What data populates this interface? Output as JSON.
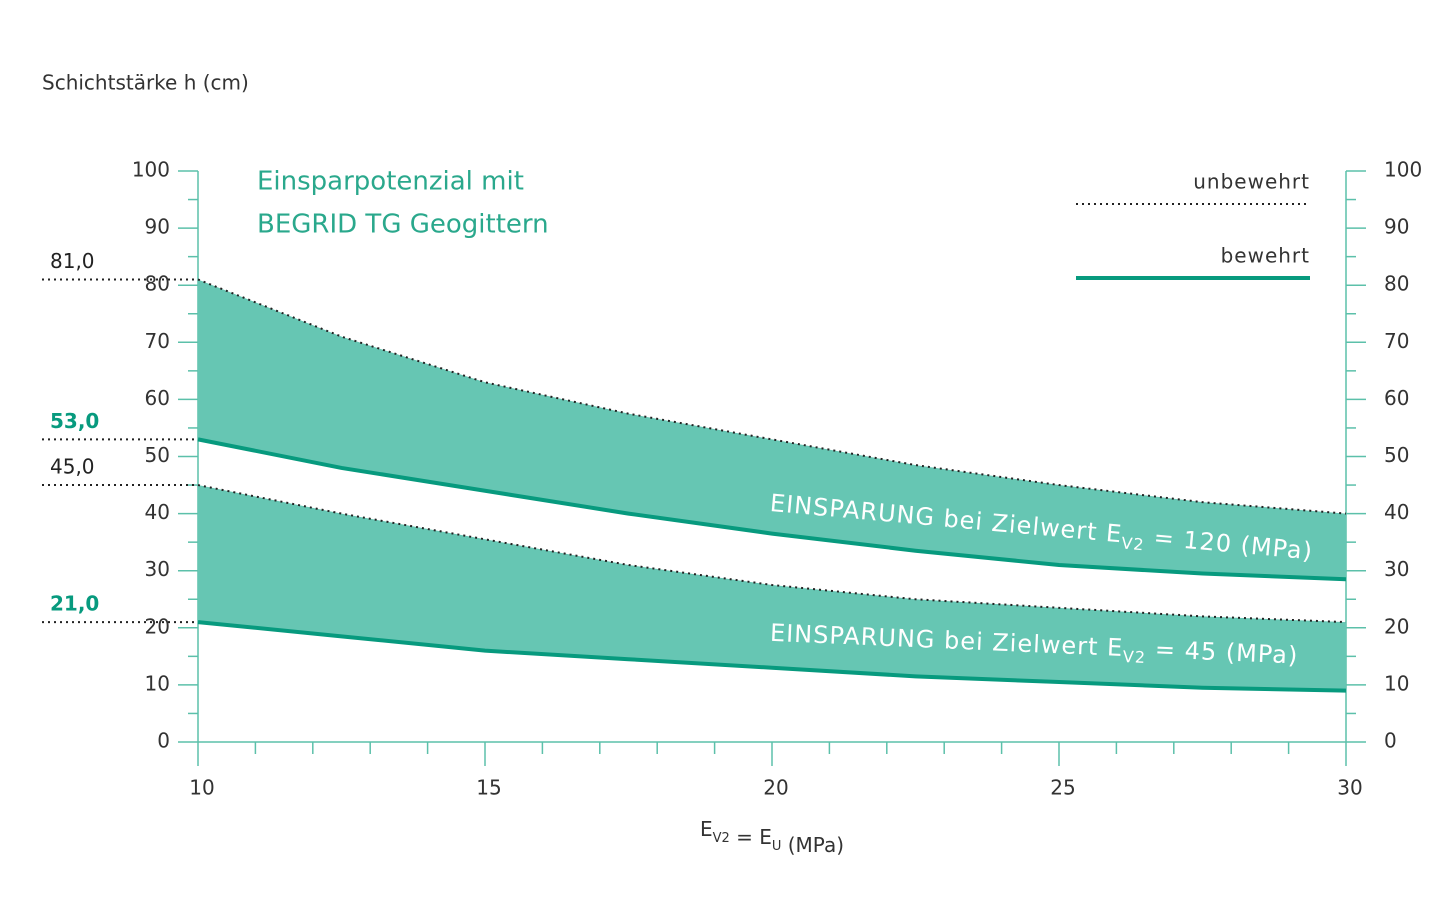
{
  "chart_data": {
    "type": "band",
    "ylabel": "Schichtstärke h (cm)",
    "title_lines": [
      "Einsparpotenzial mit",
      "BEGRID TG Geogittern"
    ],
    "xlabel": [
      {
        "text": "E",
        "sub": "V2"
      },
      {
        "text": " = E",
        "sub": "U"
      },
      {
        "text": " (MPa)"
      }
    ],
    "x": [
      10,
      12.5,
      15,
      17.5,
      20,
      22.5,
      25,
      27.5,
      30
    ],
    "xlim": [
      10,
      30
    ],
    "xticks": [
      10,
      15,
      20,
      25,
      30
    ],
    "xminorticks": [
      11,
      12,
      13,
      14,
      16,
      17,
      18,
      19,
      21,
      22,
      23,
      24,
      26,
      27,
      28,
      29
    ],
    "ylim": [
      0,
      100
    ],
    "yticks": [
      0,
      10,
      20,
      30,
      40,
      50,
      60,
      70,
      80,
      90,
      100
    ],
    "yminorticks": [
      5,
      15,
      25,
      35,
      45,
      55,
      65,
      75,
      85,
      95
    ],
    "series": [
      {
        "name": "unbewehrt",
        "style": "dotted",
        "color": "#222222"
      },
      {
        "name": "bewehrt",
        "style": "solid",
        "color": "#079a7e"
      }
    ],
    "band_color": "#66c6b3",
    "bands": [
      {
        "label": "EINSPARUNG bei Zielwert E",
        "sub": "V2",
        "suffix": " = 120 (MPa)",
        "series": [
          [
            81,
            71,
            63,
            57.5,
            53,
            48.5,
            45,
            42,
            40
          ],
          [
            53,
            48,
            44,
            40,
            36.5,
            33.5,
            31,
            29.5,
            28.5
          ]
        ]
      },
      {
        "label": "EINSPARUNG bei Zielwert E",
        "sub": "V2",
        "suffix": " = 45 (MPa)",
        "series": [
          [
            45,
            40,
            35.5,
            31,
            27.5,
            25,
            23.5,
            22,
            21
          ],
          [
            21,
            18.5,
            16,
            14.5,
            13,
            11.5,
            10.5,
            9.5,
            9
          ]
        ]
      }
    ],
    "annotations": [
      {
        "value": 81,
        "label": "81,0",
        "color": "#222222",
        "bold": false
      },
      {
        "value": 53,
        "label": "53,0",
        "color": "#079a7e",
        "bold": true
      },
      {
        "value": 45,
        "label": "45,0",
        "color": "#222222",
        "bold": false
      },
      {
        "value": 21,
        "label": "21,0",
        "color": "#079a7e",
        "bold": true
      }
    ]
  }
}
